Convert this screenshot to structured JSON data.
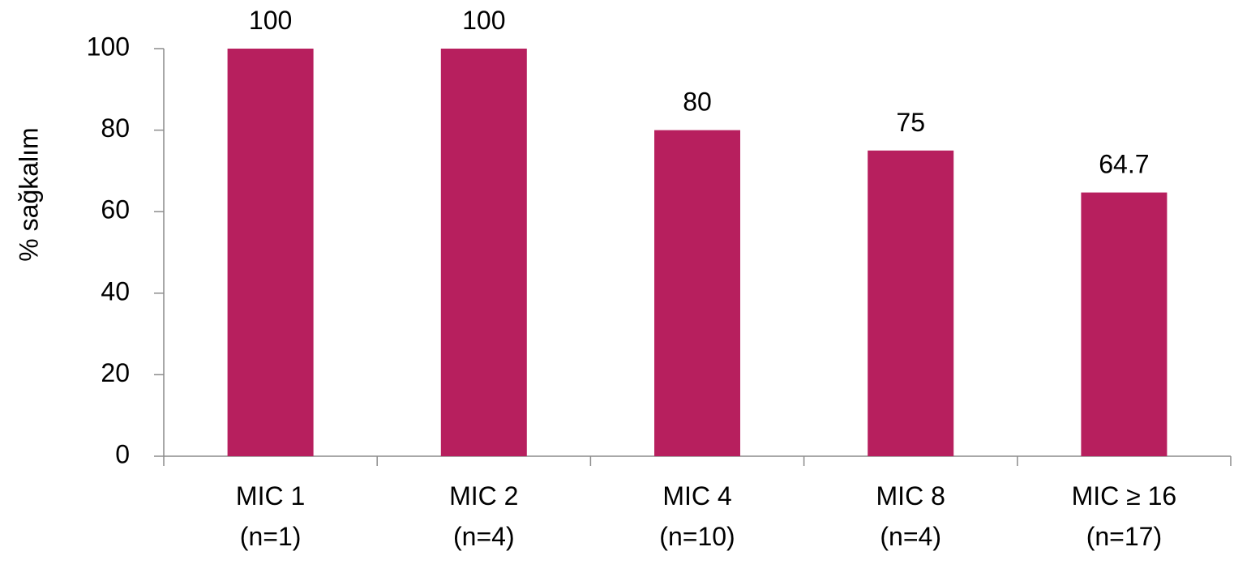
{
  "chart_data": {
    "type": "bar",
    "y_label": "% sağkalım",
    "categories": [
      "MIC 1\n(n=1)",
      "MIC 2\n(n=4)",
      "MIC 4\n(n=10)",
      "MIC 8\n(n=4)",
      "MIC ≥ 16\n(n=17)"
    ],
    "values": [
      100,
      100,
      80,
      75,
      64.7
    ],
    "color": "#b71f5e",
    "ylim": [
      0,
      100
    ],
    "yticks": [
      0,
      20,
      40,
      60,
      80,
      100
    ],
    "grid": false
  }
}
